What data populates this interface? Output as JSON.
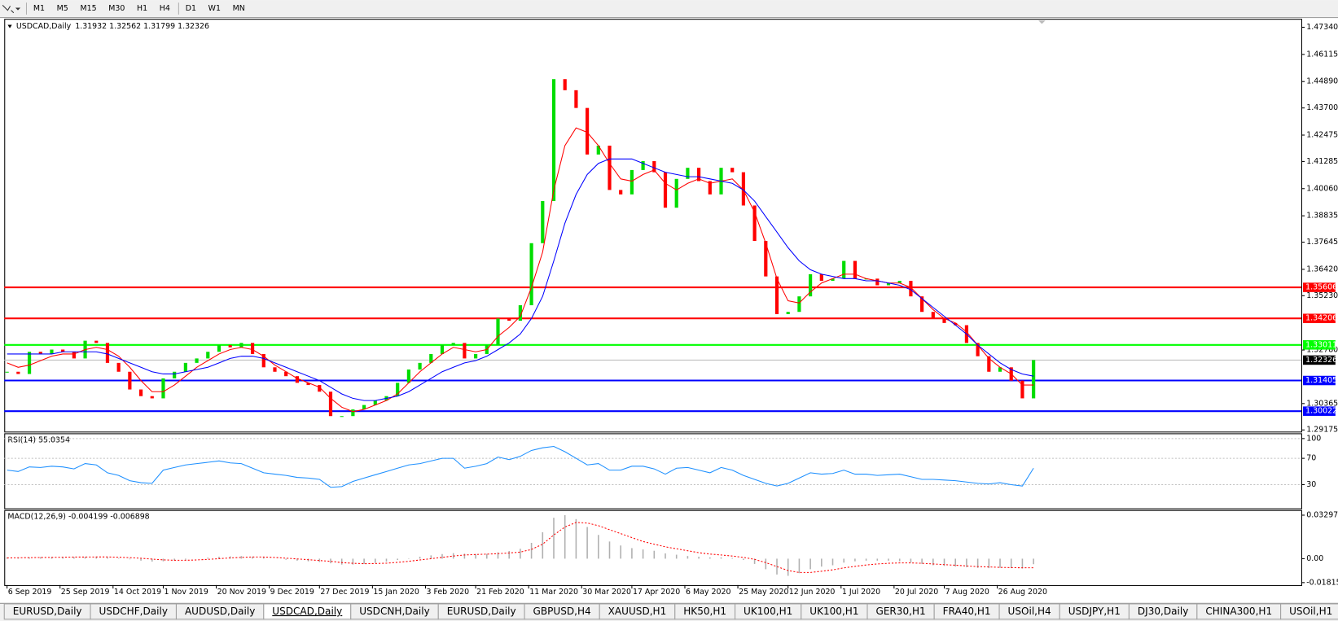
{
  "toolbar": {
    "timeframes": [
      [
        "M1",
        "M5",
        "M15",
        "M30",
        "H1",
        "H4"
      ],
      [
        "D1",
        "W1",
        "MN"
      ]
    ]
  },
  "chart_data": [
    {
      "type": "candlestick",
      "title": "USDCAD,Daily",
      "ohlc_text": "1.31932 1.32562 1.31799 1.32326",
      "xlim": [
        "2019-09-05",
        "2020-12-13"
      ],
      "xticks": [
        {
          "value": "2019-09-06",
          "label": "6 Sep 2019"
        },
        {
          "value": "2019-09-25",
          "label": "25 Sep 2019"
        },
        {
          "value": "2019-10-14",
          "label": "14 Oct 2019"
        },
        {
          "value": "2019-11-01",
          "label": "1 Nov 2019"
        },
        {
          "value": "2019-11-20",
          "label": "20 Nov 2019"
        },
        {
          "value": "2019-12-09",
          "label": "9 Dec 2019"
        },
        {
          "value": "2019-12-27",
          "label": "27 Dec 2019"
        },
        {
          "value": "2020-01-15",
          "label": "15 Jan 2020"
        },
        {
          "value": "2020-02-03",
          "label": "3 Feb 2020"
        },
        {
          "value": "2020-02-21",
          "label": "21 Feb 2020"
        },
        {
          "value": "2020-03-11",
          "label": "11 Mar 2020"
        },
        {
          "value": "2020-03-30",
          "label": "30 Mar 2020"
        },
        {
          "value": "2020-04-17",
          "label": "17 Apr 2020"
        },
        {
          "value": "2020-05-06",
          "label": "6 May 2020"
        },
        {
          "value": "2020-05-25",
          "label": "25 May 2020"
        },
        {
          "value": "2020-06-12",
          "label": "12 Jun 2020"
        },
        {
          "value": "2020-07-01",
          "label": "1 Jul 2020"
        },
        {
          "value": "2020-07-20",
          "label": "20 Jul 2020"
        },
        {
          "value": "2020-08-07",
          "label": "7 Aug 2020"
        },
        {
          "value": "2020-08-26",
          "label": "26 Aug 2020"
        }
      ],
      "ylim": [
        1.291,
        1.4772
      ],
      "yticks": [
        {
          "value": 1.4734,
          "label": "1.47340"
        },
        1.46115,
        {
          "value": 1.4489,
          "label": "1.44890"
        },
        {
          "value": 1.437,
          "label": "1.43700"
        },
        1.42475,
        1.41285,
        {
          "value": 1.4006,
          "label": "1.40060"
        },
        1.38835,
        1.37645,
        {
          "value": 1.3642,
          "label": "1.36420"
        },
        {
          "value": 1.3523,
          "label": "1.35230"
        },
        {
          "value": 1.3278,
          "label": "1.32780"
        },
        1.30365,
        1.29175
      ],
      "x": [
        "2019-09-06",
        "2019-09-10",
        "2019-09-14",
        "2019-09-18",
        "2019-09-22",
        "2019-09-26",
        "2019-09-30",
        "2019-10-04",
        "2019-10-08",
        "2019-10-12",
        "2019-10-16",
        "2019-10-20",
        "2019-10-24",
        "2019-10-28",
        "2019-11-01",
        "2019-11-05",
        "2019-11-09",
        "2019-11-13",
        "2019-11-17",
        "2019-11-21",
        "2019-11-25",
        "2019-11-29",
        "2019-12-03",
        "2019-12-07",
        "2019-12-11",
        "2019-12-15",
        "2019-12-19",
        "2019-12-23",
        "2019-12-27",
        "2019-12-31",
        "2020-01-04",
        "2020-01-08",
        "2020-01-12",
        "2020-01-16",
        "2020-01-20",
        "2020-01-24",
        "2020-01-28",
        "2020-02-01",
        "2020-02-05",
        "2020-02-09",
        "2020-02-13",
        "2020-02-17",
        "2020-02-21",
        "2020-02-25",
        "2020-02-29",
        "2020-03-04",
        "2020-03-08",
        "2020-03-12",
        "2020-03-16",
        "2020-03-20",
        "2020-03-24",
        "2020-03-28",
        "2020-04-01",
        "2020-04-05",
        "2020-04-09",
        "2020-04-13",
        "2020-04-17",
        "2020-04-21",
        "2020-04-25",
        "2020-04-29",
        "2020-05-03",
        "2020-05-07",
        "2020-05-11",
        "2020-05-15",
        "2020-05-19",
        "2020-05-23",
        "2020-05-27",
        "2020-05-31",
        "2020-06-04",
        "2020-06-08",
        "2020-06-12",
        "2020-06-16",
        "2020-06-20",
        "2020-06-24",
        "2020-06-28",
        "2020-07-02",
        "2020-07-06",
        "2020-07-10",
        "2020-07-14",
        "2020-07-18",
        "2020-07-22",
        "2020-07-26",
        "2020-07-30",
        "2020-08-03",
        "2020-08-07",
        "2020-08-11",
        "2020-08-15",
        "2020-08-19",
        "2020-08-23",
        "2020-08-27",
        "2020-08-31",
        "2020-09-04",
        "2020-09-08"
      ],
      "close": [
        1.318,
        1.317,
        1.327,
        1.326,
        1.328,
        1.327,
        1.324,
        1.332,
        1.331,
        1.322,
        1.318,
        1.31,
        1.307,
        1.306,
        1.315,
        1.318,
        1.322,
        1.324,
        1.327,
        1.33,
        1.329,
        1.331,
        1.326,
        1.32,
        1.318,
        1.316,
        1.313,
        1.312,
        1.309,
        1.298,
        1.298,
        1.301,
        1.303,
        1.305,
        1.307,
        1.313,
        1.319,
        1.322,
        1.326,
        1.33,
        1.331,
        1.324,
        1.326,
        1.33,
        1.342,
        1.341,
        1.348,
        1.376,
        1.395,
        1.45,
        1.445,
        1.437,
        1.416,
        1.42,
        1.4,
        1.398,
        1.409,
        1.413,
        1.408,
        1.392,
        1.405,
        1.41,
        1.404,
        1.398,
        1.41,
        1.408,
        1.393,
        1.377,
        1.361,
        1.344,
        1.345,
        1.352,
        1.362,
        1.359,
        1.36,
        1.368,
        1.36,
        1.36,
        1.357,
        1.358,
        1.359,
        1.352,
        1.345,
        1.342,
        1.34,
        1.339,
        1.331,
        1.325,
        1.318,
        1.32,
        1.314,
        1.306,
        1.32326
      ],
      "up_color": "#00dd00",
      "down_color": "#ff0000",
      "moving_averages": [
        {
          "color": "#ff0000",
          "values": [
            1.322,
            1.32,
            1.321,
            1.323,
            1.325,
            1.326,
            1.326,
            1.328,
            1.329,
            1.328,
            1.325,
            1.32,
            1.314,
            1.309,
            1.309,
            1.312,
            1.316,
            1.32,
            1.323,
            1.326,
            1.328,
            1.329,
            1.328,
            1.325,
            1.321,
            1.318,
            1.315,
            1.313,
            1.311,
            1.306,
            1.302,
            1.3,
            1.301,
            1.303,
            1.305,
            1.308,
            1.313,
            1.318,
            1.322,
            1.326,
            1.329,
            1.328,
            1.327,
            1.328,
            1.334,
            1.338,
            1.343,
            1.356,
            1.372,
            1.4,
            1.42,
            1.428,
            1.426,
            1.42,
            1.412,
            1.405,
            1.404,
            1.407,
            1.409,
            1.403,
            1.4,
            1.403,
            1.405,
            1.403,
            1.404,
            1.405,
            1.4,
            1.39,
            1.376,
            1.36,
            1.35,
            1.349,
            1.354,
            1.358,
            1.36,
            1.362,
            1.362,
            1.36,
            1.359,
            1.358,
            1.358,
            1.356,
            1.351,
            1.346,
            1.342,
            1.34,
            1.336,
            1.33,
            1.324,
            1.32,
            1.317,
            1.312,
            1.312
          ]
        },
        {
          "color": "#0000ff",
          "values": [
            1.326,
            1.326,
            1.326,
            1.326,
            1.326,
            1.327,
            1.327,
            1.327,
            1.327,
            1.326,
            1.324,
            1.322,
            1.32,
            1.318,
            1.317,
            1.317,
            1.318,
            1.319,
            1.32,
            1.322,
            1.324,
            1.325,
            1.325,
            1.324,
            1.322,
            1.32,
            1.318,
            1.316,
            1.314,
            1.311,
            1.308,
            1.306,
            1.305,
            1.305,
            1.306,
            1.307,
            1.309,
            1.312,
            1.315,
            1.318,
            1.32,
            1.322,
            1.323,
            1.325,
            1.328,
            1.331,
            1.335,
            1.342,
            1.352,
            1.368,
            1.385,
            1.398,
            1.407,
            1.412,
            1.414,
            1.414,
            1.414,
            1.412,
            1.41,
            1.408,
            1.407,
            1.406,
            1.406,
            1.405,
            1.404,
            1.403,
            1.4,
            1.395,
            1.388,
            1.381,
            1.374,
            1.368,
            1.364,
            1.362,
            1.361,
            1.36,
            1.36,
            1.359,
            1.359,
            1.358,
            1.357,
            1.355,
            1.351,
            1.347,
            1.343,
            1.339,
            1.335,
            1.33,
            1.326,
            1.322,
            1.319,
            1.317,
            1.316
          ]
        }
      ],
      "levels": [
        {
          "value": 1.35606,
          "color": "#ff0000"
        },
        {
          "value": 1.34206,
          "color": "#ff0000"
        },
        {
          "value": 1.33011,
          "color": "#00ff00"
        },
        {
          "value": 1.31405,
          "color": "#0000ff"
        },
        {
          "value": 1.30022,
          "color": "#0000ff"
        }
      ],
      "current_price": 1.32326
    },
    {
      "type": "line",
      "title": "RSI(14) 55.0354",
      "color": "#1e90ff",
      "ylim": [
        -6,
        108
      ],
      "yticks": [
        100,
        70,
        30
      ],
      "values": [
        52,
        50,
        57,
        56,
        58,
        57,
        54,
        62,
        60,
        48,
        44,
        36,
        33,
        32,
        52,
        56,
        60,
        62,
        64,
        66,
        63,
        62,
        55,
        48,
        46,
        44,
        41,
        40,
        38,
        26,
        27,
        35,
        40,
        45,
        50,
        55,
        60,
        62,
        66,
        70,
        70,
        55,
        58,
        62,
        72,
        68,
        73,
        82,
        86,
        88,
        80,
        70,
        60,
        62,
        52,
        52,
        58,
        58,
        54,
        46,
        55,
        56,
        52,
        48,
        56,
        52,
        44,
        38,
        32,
        28,
        32,
        40,
        48,
        46,
        47,
        52,
        46,
        46,
        44,
        45,
        46,
        42,
        38,
        38,
        37,
        36,
        34,
        32,
        31,
        33,
        30,
        28,
        55.0354
      ]
    },
    {
      "type": "macd",
      "title": "MACD(12,26,9) -0.004199 -0.006898",
      "color": "#b0b0b0",
      "signal_color": "#ff0000",
      "ylim": [
        -0.02004,
        0.03685
      ],
      "yticks": [
        0.032972,
        {
          "value": 0,
          "label": "0.00"
        },
        -0.018154
      ],
      "values": [
        0.001,
        0.0008,
        0.001,
        0.0012,
        0.0013,
        0.0013,
        0.0012,
        0.0015,
        0.0015,
        0.001,
        0.0005,
        -0.0005,
        -0.0015,
        -0.0022,
        -0.002,
        -0.0015,
        -0.0008,
        0,
        0.0008,
        0.0015,
        0.0018,
        0.002,
        0.0015,
        0.0008,
        0,
        -0.0008,
        -0.0015,
        -0.002,
        -0.0025,
        -0.0035,
        -0.0045,
        -0.0045,
        -0.004,
        -0.0032,
        -0.0022,
        -0.001,
        0.0003,
        0.0015,
        0.0025,
        0.0035,
        0.0042,
        0.0038,
        0.0035,
        0.0036,
        0.0048,
        0.0058,
        0.0075,
        0.012,
        0.02,
        0.031,
        0.033,
        0.03,
        0.024,
        0.018,
        0.013,
        0.01,
        0.008,
        0.007,
        0.006,
        0.004,
        0.003,
        0.002,
        0.0015,
        0.001,
        0.001,
        0.0005,
        -0.001,
        -0.004,
        -0.008,
        -0.012,
        -0.013,
        -0.011,
        -0.008,
        -0.006,
        -0.005,
        -0.003,
        -0.002,
        -0.0015,
        -0.0015,
        -0.0015,
        -0.002,
        -0.003,
        -0.004,
        -0.005,
        -0.0055,
        -0.006,
        -0.0065,
        -0.007,
        -0.0072,
        -0.007,
        -0.0072,
        -0.0075,
        -0.004199
      ],
      "signal": [
        0.0005,
        0.0007,
        0.0008,
        0.0009,
        0.001,
        0.0011,
        0.0012,
        0.0012,
        0.0013,
        0.0013,
        0.0011,
        0.0008,
        0.0003,
        -0.0003,
        -0.0009,
        -0.0012,
        -0.0012,
        -0.001,
        -0.0005,
        0,
        0.0006,
        0.001,
        0.0013,
        0.0012,
        0.0009,
        0.0004,
        -0.0002,
        -0.0008,
        -0.0014,
        -0.002,
        -0.003,
        -0.0035,
        -0.0038,
        -0.0037,
        -0.0034,
        -0.0028,
        -0.002,
        -0.001,
        0,
        0.001,
        0.002,
        0.0028,
        0.0032,
        0.0034,
        0.0038,
        0.0043,
        0.005,
        0.007,
        0.011,
        0.018,
        0.024,
        0.0275,
        0.027,
        0.025,
        0.022,
        0.019,
        0.016,
        0.013,
        0.011,
        0.009,
        0.0075,
        0.006,
        0.0045,
        0.0035,
        0.0028,
        0.002,
        0.001,
        -0.0005,
        -0.003,
        -0.006,
        -0.009,
        -0.0105,
        -0.0105,
        -0.0095,
        -0.0085,
        -0.007,
        -0.0058,
        -0.0048,
        -0.004,
        -0.0035,
        -0.0032,
        -0.0032,
        -0.0035,
        -0.004,
        -0.0045,
        -0.005,
        -0.0055,
        -0.006,
        -0.0063,
        -0.0066,
        -0.0068,
        -0.0069,
        -0.006898
      ]
    }
  ],
  "tabs": [
    {
      "label": "EURUSD,Daily"
    },
    {
      "label": "USDCHF,Daily"
    },
    {
      "label": "AUDUSD,Daily"
    },
    {
      "label": "USDCAD,Daily",
      "active": true
    },
    {
      "label": "USDCNH,Daily"
    },
    {
      "label": "EURUSD,Daily"
    },
    {
      "label": "GBPUSD,H4"
    },
    {
      "label": "XAUUSD,H1"
    },
    {
      "label": "HK50,H1"
    },
    {
      "label": "UK100,H1"
    },
    {
      "label": "UK100,H1"
    },
    {
      "label": "GER30,H1"
    },
    {
      "label": "FRA40,H1"
    },
    {
      "label": "USOil,H4"
    },
    {
      "label": "USDJPY,H1"
    },
    {
      "label": "DJ30,Daily"
    },
    {
      "label": "CHINA300,H1"
    },
    {
      "label": "USOil,H1"
    }
  ]
}
